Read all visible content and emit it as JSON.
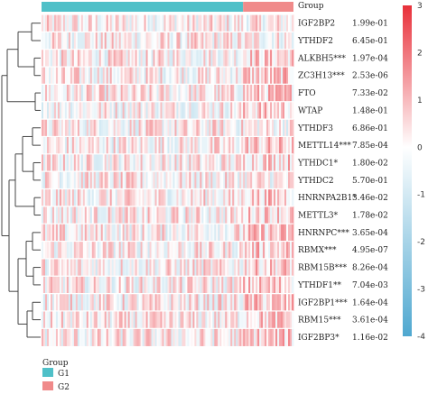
{
  "chart_data": {
    "type": "heatmap",
    "column_annotation": {
      "title": "Group",
      "categories": [
        "G1",
        "G2"
      ],
      "colors": {
        "G1": "#4fc0c8",
        "G2": "#f08a8a"
      },
      "g1_fraction": 0.8
    },
    "rows": [
      {
        "gene": "IGF2BP2",
        "p": "1.99e-01"
      },
      {
        "gene": "YTHDF2",
        "p": "6.45e-01"
      },
      {
        "gene": "ALKBH5***",
        "p": "1.97e-04"
      },
      {
        "gene": "ZC3H13***",
        "p": "2.53e-06"
      },
      {
        "gene": "FTO",
        "p": "7.33e-02"
      },
      {
        "gene": "WTAP",
        "p": "1.48e-01"
      },
      {
        "gene": "YTHDF3",
        "p": "6.86e-01"
      },
      {
        "gene": "METTL14***",
        "p": "7.85e-04"
      },
      {
        "gene": "YTHDC1*",
        "p": "1.80e-02"
      },
      {
        "gene": "YTHDC2",
        "p": "5.70e-01"
      },
      {
        "gene": "HNRNPA2B1*",
        "p": "3.46e-02"
      },
      {
        "gene": "METTL3*",
        "p": "1.78e-02"
      },
      {
        "gene": "HNRNPC***",
        "p": "3.65e-04"
      },
      {
        "gene": "RBMX***",
        "p": "4.95e-07"
      },
      {
        "gene": "RBM15B***",
        "p": "8.26e-04"
      },
      {
        "gene": "YTHDF1**",
        "p": "7.04e-03"
      },
      {
        "gene": "IGF2BP1***",
        "p": "1.64e-04"
      },
      {
        "gene": "RBM15***",
        "p": "3.61e-04"
      },
      {
        "gene": "IGF2BP3*",
        "p": "1.16e-02"
      }
    ],
    "colorbar": {
      "range": [
        -4,
        3
      ],
      "ticks": [
        "3",
        "2",
        "1",
        "0",
        "-1",
        "-2",
        "-3",
        "-4"
      ],
      "low_color": "#4fa8d0",
      "mid_color": "#ffffff",
      "high_color": "#e8303a"
    }
  },
  "legend": {
    "title": "Group",
    "items": [
      "G1",
      "G2"
    ]
  }
}
